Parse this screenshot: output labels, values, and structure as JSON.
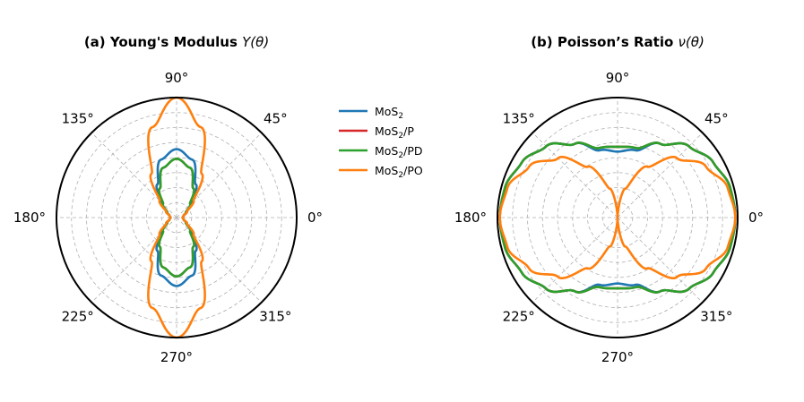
{
  "chart_data": [
    {
      "type": "polar",
      "title": "(a) Young's Modulus",
      "title_symbol": "Y(θ)",
      "angle_ticks": [
        "0°",
        "45°",
        "90°",
        "135°",
        "180°",
        "225°",
        "270°",
        "315°"
      ],
      "grid": true,
      "theta_deg": [
        0,
        15,
        30,
        45,
        60,
        75,
        90,
        105,
        120,
        135,
        150,
        165,
        180
      ],
      "series": [
        {
          "name": "MoS₂",
          "color": "#1f77b4",
          "r": [
            0.05,
            0.06,
            0.1,
            0.18,
            0.32,
            0.5,
            0.57,
            0.5,
            0.32,
            0.18,
            0.1,
            0.06,
            0.05
          ]
        },
        {
          "name": "MoS₂/P",
          "color": "#d62728",
          "r": [
            0.05,
            0.06,
            0.09,
            0.16,
            0.28,
            0.43,
            0.49,
            0.43,
            0.28,
            0.16,
            0.09,
            0.06,
            0.05
          ]
        },
        {
          "name": "MoS₂/PD",
          "color": "#2ca02c",
          "r": [
            0.05,
            0.06,
            0.09,
            0.16,
            0.28,
            0.43,
            0.49,
            0.43,
            0.28,
            0.16,
            0.09,
            0.06,
            0.05
          ]
        },
        {
          "name": "MoS₂/PO",
          "color": "#ff7f0e",
          "r": [
            0.05,
            0.06,
            0.1,
            0.2,
            0.42,
            0.78,
            1.0,
            0.78,
            0.42,
            0.2,
            0.1,
            0.06,
            0.05
          ]
        }
      ]
    },
    {
      "type": "polar",
      "title": "(b) Poisson’s Ratio",
      "title_symbol": "ν(θ)",
      "angle_ticks": [
        "0°",
        "45°",
        "90°",
        "135°",
        "180°",
        "225°",
        "270°",
        "315°"
      ],
      "grid": true,
      "theta_deg": [
        0,
        15,
        30,
        45,
        60,
        75,
        90,
        105,
        120,
        135,
        150,
        165,
        180
      ],
      "series": [
        {
          "name": "MoS₂",
          "color": "#1f77b4",
          "r": [
            0.98,
            0.97,
            0.92,
            0.84,
            0.71,
            0.58,
            0.55,
            0.58,
            0.71,
            0.84,
            0.92,
            0.97,
            0.98
          ]
        },
        {
          "name": "MoS₂/P",
          "color": "#d62728",
          "r": [
            0.98,
            0.97,
            0.92,
            0.84,
            0.71,
            0.6,
            0.59,
            0.6,
            0.71,
            0.84,
            0.92,
            0.97,
            0.98
          ]
        },
        {
          "name": "MoS₂/PD",
          "color": "#2ca02c",
          "r": [
            0.98,
            0.97,
            0.92,
            0.84,
            0.71,
            0.6,
            0.59,
            0.6,
            0.71,
            0.84,
            0.92,
            0.97,
            0.98
          ]
        },
        {
          "name": "MoS₂/PO",
          "color": "#ff7f0e",
          "r": [
            0.98,
            0.95,
            0.85,
            0.7,
            0.49,
            0.25,
            0.0,
            0.25,
            0.49,
            0.7,
            0.85,
            0.95,
            0.98
          ]
        }
      ]
    }
  ],
  "legend": {
    "placement": "between panels, top",
    "entries": [
      {
        "base": "MoS",
        "sub": "2",
        "suffix": "",
        "color": "#1f77b4"
      },
      {
        "base": "MoS",
        "sub": "2",
        "suffix": "/P",
        "color": "#d62728"
      },
      {
        "base": "MoS",
        "sub": "2",
        "suffix": "/PD",
        "color": "#2ca02c"
      },
      {
        "base": "MoS",
        "sub": "2",
        "suffix": "/PO",
        "color": "#ff7f0e"
      }
    ]
  }
}
